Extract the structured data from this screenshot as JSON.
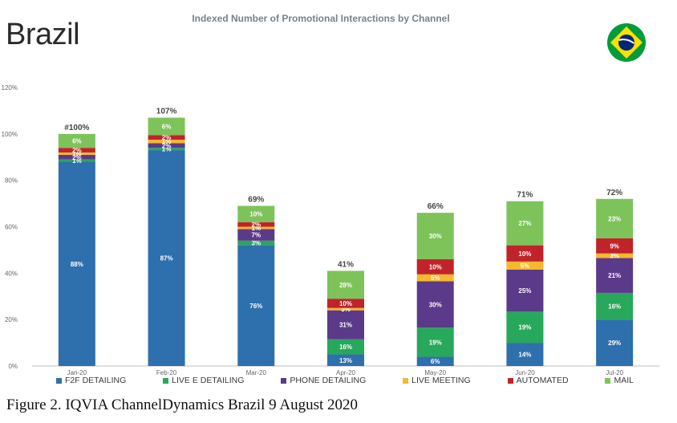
{
  "header": {
    "chart_title": "Indexed Number of Promotional Interactions by Channel",
    "country": "Brazil"
  },
  "flag": {
    "icon": "brazil-flag-icon",
    "colors": {
      "green": "#009c3b",
      "yellow": "#ffdf00",
      "blue": "#002776"
    }
  },
  "caption": "Figure 2. IQVIA ChannelDynamics Brazil 9 August 2020",
  "chart_data": {
    "type": "bar",
    "stacked": true,
    "title": "Indexed Number of Promotional Interactions by Channel",
    "categories": [
      "Jan-20",
      "Feb-20",
      "Mar-20",
      "Apr-20",
      "May-20",
      "Jun-20",
      "Jul-20"
    ],
    "totals": [
      "#100%",
      "107%",
      "69%",
      "41%",
      "66%",
      "71%",
      "72%"
    ],
    "total_values": [
      100,
      107,
      69,
      41,
      66,
      71,
      72
    ],
    "ylim": [
      0,
      120
    ],
    "y_ticks": [
      0,
      20,
      40,
      60,
      80,
      100,
      120
    ],
    "y_tick_labels": [
      "0%",
      "20%",
      "40%",
      "60%",
      "80%",
      "100%",
      "120%"
    ],
    "legend_position": "bottom",
    "grid": false,
    "series": [
      {
        "name": "F2F DETAILING",
        "color": "#2e6fad",
        "values": [
          88,
          93,
          52,
          5,
          4,
          10,
          20
        ],
        "labels": [
          "88%",
          "87%",
          "76%",
          "13%",
          "6%",
          "14%",
          "29%"
        ]
      },
      {
        "name": "LIVE E DETAILING",
        "color": "#27a85a",
        "values": [
          1,
          1,
          2,
          6.5,
          12.5,
          13.5,
          11.5
        ],
        "labels": [
          "1%",
          "1%",
          "3%",
          "16%",
          "19%",
          "19%",
          "16%"
        ]
      },
      {
        "name": "PHONE DETAILING",
        "color": "#5b3a8a",
        "values": [
          2,
          2,
          5,
          12.5,
          20,
          18,
          15
        ],
        "labels": [
          "2%",
          "2%",
          "7%",
          "31%",
          "30%",
          "25%",
          "21%"
        ]
      },
      {
        "name": "LIVE MEETING",
        "color": "#f5b82e",
        "values": [
          1,
          1.5,
          1,
          1,
          3,
          3.5,
          2
        ],
        "labels": [
          "1%",
          "1%",
          "1%",
          "3%",
          "5%",
          "5%",
          "3%"
        ]
      },
      {
        "name": "AUTOMATED",
        "color": "#c0242a",
        "values": [
          2,
          2,
          2,
          4,
          6.5,
          7,
          6.5
        ],
        "labels": [
          "2%",
          "2%",
          "2%",
          "10%",
          "10%",
          "10%",
          "9%"
        ]
      },
      {
        "name": "MAIL",
        "color": "#7dc35a",
        "values": [
          6,
          7.5,
          7,
          12,
          20,
          19,
          17
        ],
        "labels": [
          "6%",
          "6%",
          "10%",
          "28%",
          "30%",
          "27%",
          "23%"
        ]
      }
    ]
  }
}
